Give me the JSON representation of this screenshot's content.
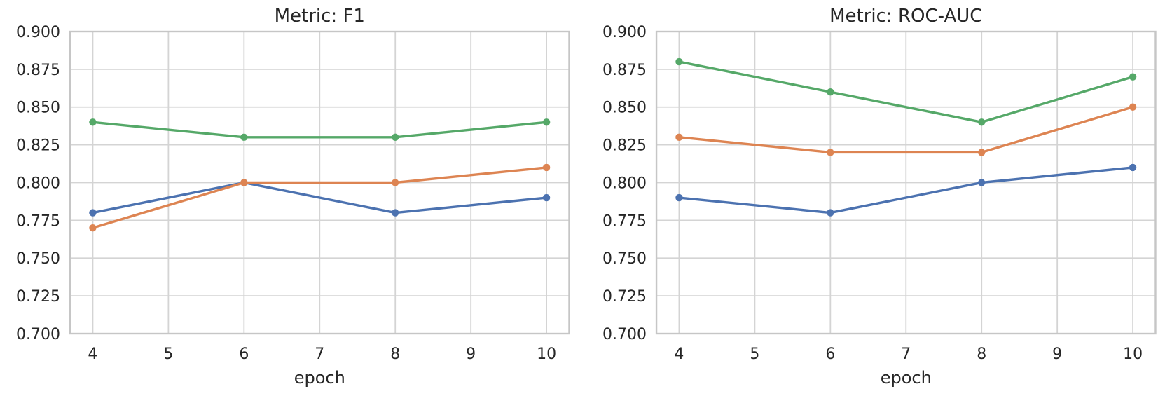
{
  "figure": {
    "background": "#ffffff",
    "text_color": "#262626",
    "grid_color": "#d4d4d4",
    "spine_color": "#c6c6c6"
  },
  "chart_data": [
    {
      "type": "line",
      "title": "Metric: F1",
      "xlabel": "epoch",
      "ylabel": "",
      "x": [
        4,
        6,
        8,
        10
      ],
      "xlim": [
        3.7,
        10.3
      ],
      "ylim": [
        0.7,
        0.9
      ],
      "xticks": [
        4,
        5,
        6,
        7,
        8,
        9,
        10
      ],
      "xticklabels": [
        "4",
        "5",
        "6",
        "7",
        "8",
        "9",
        "10"
      ],
      "yticks": [
        0.7,
        0.725,
        0.75,
        0.775,
        0.8,
        0.825,
        0.85,
        0.875,
        0.9
      ],
      "yticklabels": [
        "0.700",
        "0.725",
        "0.750",
        "0.775",
        "0.800",
        "0.825",
        "0.850",
        "0.875",
        "0.900"
      ],
      "grid": true,
      "legend": "none",
      "series": [
        {
          "name": "blue",
          "color": "#4C72B0",
          "values": [
            0.78,
            0.8,
            0.78,
            0.79
          ]
        },
        {
          "name": "orange",
          "color": "#DD8452",
          "values": [
            0.77,
            0.8,
            0.8,
            0.81
          ]
        },
        {
          "name": "green",
          "color": "#55A868",
          "values": [
            0.84,
            0.83,
            0.83,
            0.84
          ]
        }
      ]
    },
    {
      "type": "line",
      "title": "Metric: ROC-AUC",
      "xlabel": "epoch",
      "ylabel": "",
      "x": [
        4,
        6,
        8,
        10
      ],
      "xlim": [
        3.7,
        10.3
      ],
      "ylim": [
        0.7,
        0.9
      ],
      "xticks": [
        4,
        5,
        6,
        7,
        8,
        9,
        10
      ],
      "xticklabels": [
        "4",
        "5",
        "6",
        "7",
        "8",
        "9",
        "10"
      ],
      "yticks": [
        0.7,
        0.725,
        0.75,
        0.775,
        0.8,
        0.825,
        0.85,
        0.875,
        0.9
      ],
      "yticklabels": [
        "0.700",
        "0.725",
        "0.750",
        "0.775",
        "0.800",
        "0.825",
        "0.850",
        "0.875",
        "0.900"
      ],
      "grid": true,
      "legend": "none",
      "series": [
        {
          "name": "blue",
          "color": "#4C72B0",
          "values": [
            0.79,
            0.78,
            0.8,
            0.81
          ]
        },
        {
          "name": "orange",
          "color": "#DD8452",
          "values": [
            0.83,
            0.82,
            0.82,
            0.85
          ]
        },
        {
          "name": "green",
          "color": "#55A868",
          "values": [
            0.88,
            0.86,
            0.84,
            0.87
          ]
        }
      ]
    }
  ]
}
